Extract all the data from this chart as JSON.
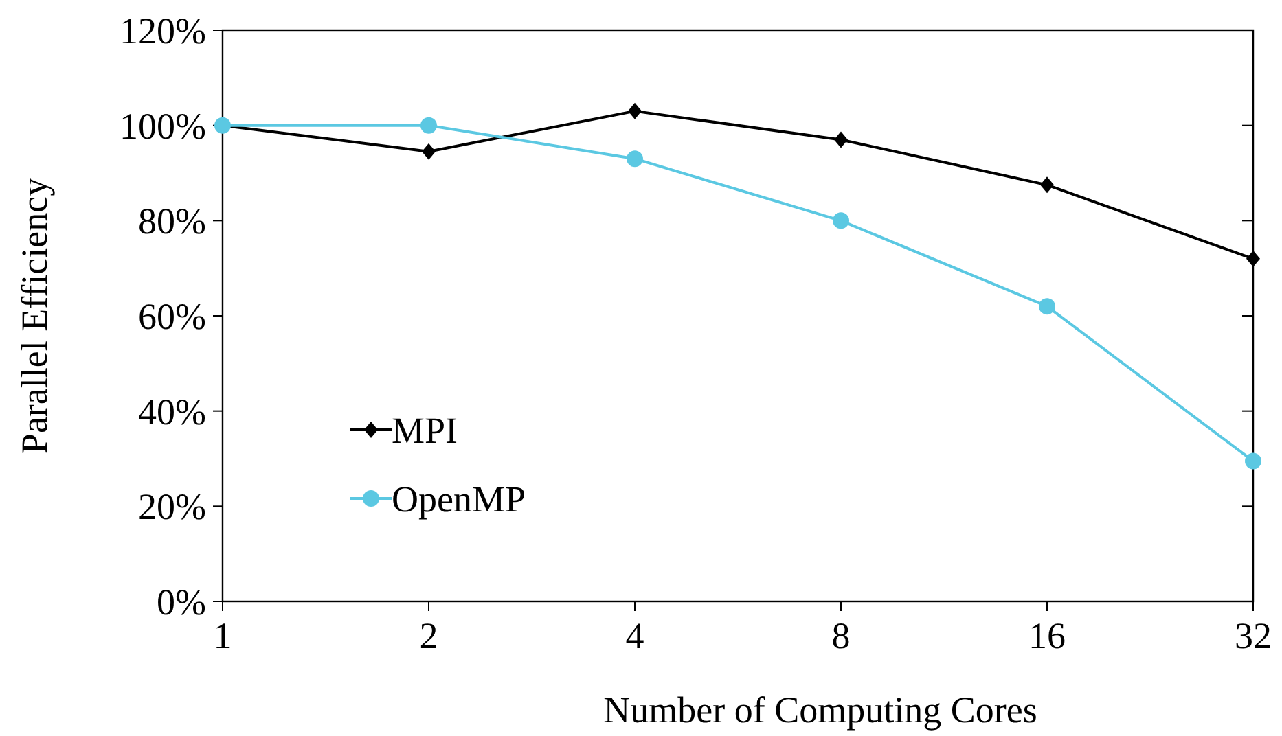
{
  "chart_data": {
    "type": "line",
    "xlabel": "Number of Computing Cores",
    "ylabel": "Parallel Efficiency",
    "categories": [
      "1",
      "2",
      "4",
      "8",
      "16",
      "32"
    ],
    "series": [
      {
        "name": "MPI",
        "color": "#000000",
        "marker": "diamond",
        "values": [
          100,
          94.5,
          103,
          97,
          87.5,
          72
        ]
      },
      {
        "name": "OpenMP",
        "color": "#5bc8e2",
        "marker": "circle",
        "values": [
          100,
          100,
          93,
          80,
          62,
          29.5
        ]
      }
    ],
    "ylim": [
      0,
      120
    ],
    "yticks": [
      {
        "value": 0,
        "label": "0%"
      },
      {
        "value": 20,
        "label": "20%"
      },
      {
        "value": 40,
        "label": "40%"
      },
      {
        "value": 60,
        "label": "60%"
      },
      {
        "value": 80,
        "label": "80%"
      },
      {
        "value": 100,
        "label": "100%"
      },
      {
        "value": 120,
        "label": "120%"
      }
    ],
    "grid": false,
    "legend": "left"
  }
}
